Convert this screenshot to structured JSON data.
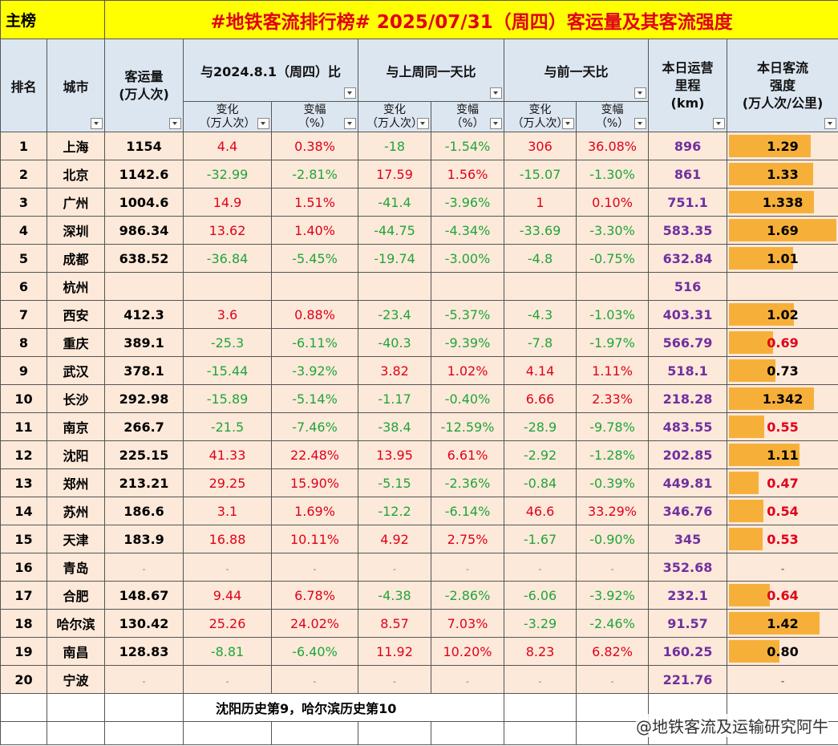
{
  "header": {
    "tag": "主榜",
    "title": "#地铁客流排行榜# 2025/07/31（周四）客运量及其客流强度"
  },
  "columns": {
    "rank": "排名",
    "city": "城市",
    "volume": [
      "客运量",
      "(万人次)"
    ],
    "groups": [
      "与2024.8.1（周四）比",
      "与上周同一天比",
      "与前一天比"
    ],
    "change": [
      "变化",
      "（万人次）"
    ],
    "pct": [
      "变幅",
      "（%）"
    ],
    "mileage": [
      "本日运营",
      "里程",
      "(km)"
    ],
    "intensity": [
      "本日客流",
      "强度",
      "(万人次/公里)"
    ]
  },
  "table": {
    "rows": [
      [
        "1",
        "上海",
        "1154",
        "4.4",
        "0.38%",
        "-18",
        "-1.54%",
        "306",
        "36.08%",
        "896",
        "1.29"
      ],
      [
        "2",
        "北京",
        "1142.6",
        "-32.99",
        "-2.81%",
        "17.59",
        "1.56%",
        "-15.07",
        "-1.30%",
        "861",
        "1.33"
      ],
      [
        "3",
        "广州",
        "1004.6",
        "14.9",
        "1.51%",
        "-41.4",
        "-3.96%",
        "1",
        "0.10%",
        "751.1",
        "1.338"
      ],
      [
        "4",
        "深圳",
        "986.34",
        "13.62",
        "1.40%",
        "-44.75",
        "-4.34%",
        "-33.69",
        "-3.30%",
        "583.35",
        "1.69"
      ],
      [
        "5",
        "成都",
        "638.52",
        "-36.84",
        "-5.45%",
        "-19.74",
        "-3.00%",
        "-4.8",
        "-0.75%",
        "632.84",
        "1.01"
      ],
      [
        "6",
        "杭州",
        null,
        null,
        null,
        null,
        null,
        null,
        null,
        "516",
        null
      ],
      [
        "7",
        "西安",
        "412.3",
        "3.6",
        "0.88%",
        "-23.4",
        "-5.37%",
        "-4.3",
        "-1.03%",
        "403.31",
        "1.02"
      ],
      [
        "8",
        "重庆",
        "389.1",
        "-25.3",
        "-6.11%",
        "-40.3",
        "-9.39%",
        "-7.8",
        "-1.97%",
        "566.79",
        "0.69"
      ],
      [
        "9",
        "武汉",
        "378.1",
        "-15.44",
        "-3.92%",
        "3.82",
        "1.02%",
        "4.14",
        "1.11%",
        "518.1",
        "0.73"
      ],
      [
        "10",
        "长沙",
        "292.98",
        "-15.89",
        "-5.14%",
        "-1.17",
        "-0.40%",
        "6.66",
        "2.33%",
        "218.28",
        "1.342"
      ],
      [
        "11",
        "南京",
        "266.7",
        "-21.5",
        "-7.46%",
        "-38.4",
        "-12.59%",
        "-28.9",
        "-9.78%",
        "483.55",
        "0.55"
      ],
      [
        "12",
        "沈阳",
        "225.15",
        "41.33",
        "22.48%",
        "13.95",
        "6.61%",
        "-2.92",
        "-1.28%",
        "202.85",
        "1.11"
      ],
      [
        "13",
        "郑州",
        "213.21",
        "29.25",
        "15.90%",
        "-5.15",
        "-2.36%",
        "-0.84",
        "-0.39%",
        "449.81",
        "0.47"
      ],
      [
        "14",
        "苏州",
        "186.6",
        "3.1",
        "1.69%",
        "-12.2",
        "-6.14%",
        "46.6",
        "33.29%",
        "346.76",
        "0.54"
      ],
      [
        "15",
        "天津",
        "183.9",
        "16.88",
        "10.11%",
        "4.92",
        "2.75%",
        "-1.67",
        "-0.90%",
        "345",
        "0.53"
      ],
      [
        "16",
        "青岛",
        "-",
        "-",
        "-",
        "-",
        "-",
        "-",
        "-",
        "352.68",
        "-"
      ],
      [
        "17",
        "合肥",
        "148.67",
        "9.44",
        "6.78%",
        "-4.38",
        "-2.86%",
        "-6.06",
        "-3.92%",
        "232.1",
        "0.64"
      ],
      [
        "18",
        "哈尔滨",
        "130.42",
        "25.26",
        "24.02%",
        "8.57",
        "7.03%",
        "-3.29",
        "-2.46%",
        "91.57",
        "1.42"
      ],
      [
        "19",
        "南昌",
        "128.83",
        "-8.81",
        "-6.40%",
        "11.92",
        "10.20%",
        "8.23",
        "6.82%",
        "160.25",
        "0.80"
      ],
      [
        "20",
        "宁波",
        "-",
        "-",
        "-",
        "-",
        "-",
        "-",
        "-",
        "221.76",
        "-"
      ]
    ]
  },
  "footer": {
    "note": "沈阳历史第9，哈尔滨历史第10",
    "credit": "@地铁客流及运输研究阿牛"
  }
}
